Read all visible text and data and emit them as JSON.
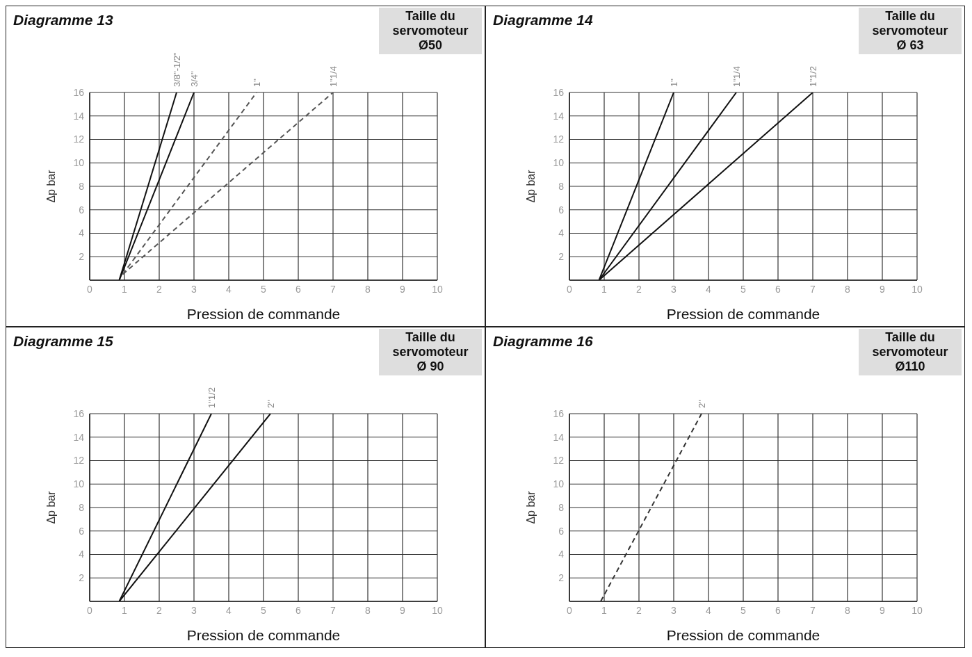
{
  "chart_data": [
    {
      "type": "line",
      "title": "Diagramme 13",
      "subtitle": "Taille du servomoteur\nØ50",
      "xlabel": "Pression de commande",
      "ylabel": "Δp bar",
      "xlim": [
        0,
        10
      ],
      "xticks": [
        0,
        1,
        2,
        3,
        4,
        5,
        6,
        7,
        8,
        9,
        10
      ],
      "ylim": [
        0,
        16
      ],
      "yticks": [
        2,
        4,
        6,
        8,
        10,
        12,
        14,
        16
      ],
      "grid": true,
      "legend": false,
      "marker": "none",
      "series": [
        {
          "name": "3/8\"-1/2\"",
          "color": "#111111",
          "line_style": "solid",
          "x": [
            0.85,
            2.5
          ],
          "values": [
            0,
            16
          ]
        },
        {
          "name": "3/4\"",
          "color": "#111111",
          "line_style": "solid",
          "x": [
            0.85,
            3
          ],
          "values": [
            0,
            16
          ]
        },
        {
          "name": "1\"",
          "color": "#555555",
          "line_style": "dashed",
          "x": [
            0.95,
            4.8
          ],
          "values": [
            0.5,
            16
          ]
        },
        {
          "name": "1\"1/4",
          "color": "#555555",
          "line_style": "dashed",
          "x": [
            0.95,
            7
          ],
          "values": [
            0.5,
            16
          ]
        }
      ]
    },
    {
      "type": "line",
      "title": "Diagramme 14",
      "subtitle": "Taille du servomoteur\nØ 63",
      "xlabel": "Pression de commande",
      "ylabel": "Δp bar",
      "xlim": [
        0,
        10
      ],
      "xticks": [
        0,
        1,
        2,
        3,
        4,
        5,
        6,
        7,
        8,
        9,
        10
      ],
      "ylim": [
        0,
        16
      ],
      "yticks": [
        2,
        4,
        6,
        8,
        10,
        12,
        14,
        16
      ],
      "grid": true,
      "legend": false,
      "marker": "none",
      "series": [
        {
          "name": "1\"",
          "color": "#111111",
          "line_style": "solid",
          "x": [
            0.85,
            3
          ],
          "values": [
            0,
            16
          ]
        },
        {
          "name": "1\"1/4",
          "color": "#111111",
          "line_style": "solid",
          "x": [
            0.85,
            4.8
          ],
          "values": [
            0,
            16
          ]
        },
        {
          "name": "1\"1/2",
          "color": "#111111",
          "line_style": "solid",
          "x": [
            0.85,
            7
          ],
          "values": [
            0,
            16
          ]
        }
      ]
    },
    {
      "type": "line",
      "title": "Diagramme 15",
      "subtitle": "Taille du servomoteur\nØ 90",
      "xlabel": "Pression de commande",
      "ylabel": "Δp bar",
      "xlim": [
        0,
        10
      ],
      "xticks": [
        0,
        1,
        2,
        3,
        4,
        5,
        6,
        7,
        8,
        9,
        10
      ],
      "ylim": [
        0,
        16
      ],
      "yticks": [
        2,
        4,
        6,
        8,
        10,
        12,
        14,
        16
      ],
      "grid": true,
      "legend": false,
      "marker": "none",
      "series": [
        {
          "name": "1\"1/2",
          "color": "#111111",
          "line_style": "solid",
          "x": [
            0.85,
            3.5
          ],
          "values": [
            0,
            16
          ]
        },
        {
          "name": "2\"",
          "color": "#111111",
          "line_style": "solid",
          "x": [
            0.85,
            5.2
          ],
          "values": [
            0,
            16
          ]
        }
      ]
    },
    {
      "type": "line",
      "title": "Diagramme 16",
      "subtitle": "Taille du servomoteur\nØ110",
      "xlabel": "Pression de commande",
      "ylabel": "Δp bar",
      "xlim": [
        0,
        10
      ],
      "xticks": [
        0,
        1,
        2,
        3,
        4,
        5,
        6,
        7,
        8,
        9,
        10
      ],
      "ylim": [
        0,
        16
      ],
      "yticks": [
        2,
        4,
        6,
        8,
        10,
        12,
        14,
        16
      ],
      "grid": true,
      "legend": false,
      "marker": "none",
      "series": [
        {
          "name": "2\"",
          "color": "#333333",
          "line_style": "dashed",
          "x": [
            0.9,
            3.8
          ],
          "values": [
            0,
            16
          ]
        }
      ]
    }
  ]
}
